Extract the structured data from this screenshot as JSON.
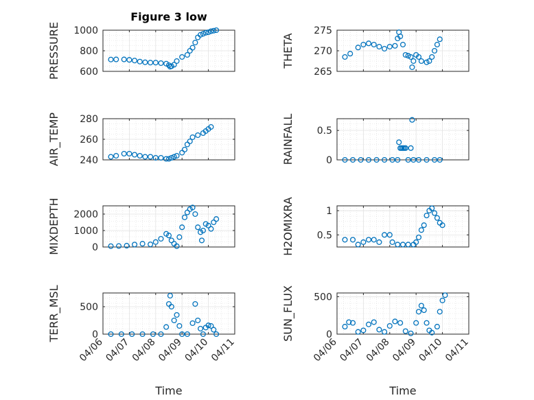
{
  "title": "Figure 3 low",
  "xlabel": "Time",
  "x_ticks": [
    "04/06",
    "04/07",
    "04/08",
    "04/09",
    "04/10",
    "04/11"
  ],
  "marker_color": "#0072BD",
  "chart_data": [
    {
      "type": "scatter",
      "ylabel": "PRESSURE",
      "ylim": [
        600,
        1000
      ],
      "yticks": [
        "600",
        "800",
        "1000"
      ],
      "points": [
        [
          0.3,
          715
        ],
        [
          0.5,
          716
        ],
        [
          0.8,
          716
        ],
        [
          1.0,
          712
        ],
        [
          1.2,
          705
        ],
        [
          1.4,
          695
        ],
        [
          1.6,
          688
        ],
        [
          1.8,
          685
        ],
        [
          2.0,
          685
        ],
        [
          2.2,
          680
        ],
        [
          2.4,
          675
        ],
        [
          2.5,
          660
        ],
        [
          2.55,
          645
        ],
        [
          2.6,
          650
        ],
        [
          2.7,
          665
        ],
        [
          2.8,
          700
        ],
        [
          3.0,
          740
        ],
        [
          3.2,
          760
        ],
        [
          3.3,
          800
        ],
        [
          3.4,
          830
        ],
        [
          3.5,
          880
        ],
        [
          3.6,
          930
        ],
        [
          3.7,
          955
        ],
        [
          3.8,
          965
        ],
        [
          3.9,
          975
        ],
        [
          4.0,
          980
        ],
        [
          4.1,
          990
        ],
        [
          4.2,
          995
        ],
        [
          4.3,
          1000
        ]
      ]
    },
    {
      "type": "scatter",
      "ylabel": "THETA",
      "ylim": [
        265,
        275
      ],
      "yticks": [
        "265",
        "270",
        "275"
      ],
      "points": [
        [
          0.3,
          268.5
        ],
        [
          0.5,
          269.3
        ],
        [
          0.8,
          270.8
        ],
        [
          1.0,
          271.5
        ],
        [
          1.2,
          271.8
        ],
        [
          1.4,
          271.5
        ],
        [
          1.6,
          271.0
        ],
        [
          1.8,
          270.5
        ],
        [
          2.0,
          271.0
        ],
        [
          2.2,
          271.2
        ],
        [
          2.3,
          273.0
        ],
        [
          2.35,
          274.5
        ],
        [
          2.4,
          273.5
        ],
        [
          2.5,
          271.5
        ],
        [
          2.6,
          269.0
        ],
        [
          2.7,
          268.8
        ],
        [
          2.8,
          268.5
        ],
        [
          2.85,
          266.0
        ],
        [
          2.9,
          267.5
        ],
        [
          3.0,
          269.0
        ],
        [
          3.1,
          268.5
        ],
        [
          3.2,
          267.5
        ],
        [
          3.4,
          267.2
        ],
        [
          3.5,
          267.5
        ],
        [
          3.6,
          268.5
        ],
        [
          3.7,
          270.0
        ],
        [
          3.8,
          271.5
        ],
        [
          3.9,
          272.8
        ]
      ]
    },
    {
      "type": "scatter",
      "ylabel": "AIR_TEMP",
      "ylim": [
        240,
        280
      ],
      "yticks": [
        "240",
        "260",
        "280"
      ],
      "points": [
        [
          0.3,
          243
        ],
        [
          0.5,
          244
        ],
        [
          0.8,
          246
        ],
        [
          1.0,
          246
        ],
        [
          1.2,
          245
        ],
        [
          1.4,
          244
        ],
        [
          1.6,
          243
        ],
        [
          1.8,
          243
        ],
        [
          2.0,
          242
        ],
        [
          2.2,
          242
        ],
        [
          2.4,
          241
        ],
        [
          2.5,
          241
        ],
        [
          2.6,
          242
        ],
        [
          2.7,
          243
        ],
        [
          2.8,
          244
        ],
        [
          3.0,
          247
        ],
        [
          3.1,
          250
        ],
        [
          3.2,
          255
        ],
        [
          3.3,
          258
        ],
        [
          3.4,
          262
        ],
        [
          3.6,
          264
        ],
        [
          3.8,
          266
        ],
        [
          3.9,
          268
        ],
        [
          4.0,
          270
        ],
        [
          4.1,
          272
        ]
      ]
    },
    {
      "type": "scatter",
      "ylabel": "RAINFALL",
      "ylim": [
        0,
        0.7
      ],
      "yticks": [
        "0",
        "0.5"
      ],
      "points": [
        [
          0.3,
          0
        ],
        [
          0.6,
          0
        ],
        [
          0.9,
          0
        ],
        [
          1.2,
          0
        ],
        [
          1.5,
          0
        ],
        [
          1.8,
          0
        ],
        [
          2.1,
          0
        ],
        [
          2.3,
          0
        ],
        [
          2.35,
          0.3
        ],
        [
          2.4,
          0.2
        ],
        [
          2.45,
          0.2
        ],
        [
          2.5,
          0.2
        ],
        [
          2.55,
          0.2
        ],
        [
          2.6,
          0.2
        ],
        [
          2.7,
          0
        ],
        [
          2.8,
          0.2
        ],
        [
          2.85,
          0.68
        ],
        [
          2.9,
          0
        ],
        [
          3.1,
          0
        ],
        [
          3.4,
          0
        ],
        [
          3.7,
          0
        ],
        [
          3.9,
          0
        ]
      ]
    },
    {
      "type": "scatter",
      "ylabel": "MIXDEPTH",
      "ylim": [
        0,
        2500
      ],
      "yticks": [
        "0",
        "1000",
        "2000"
      ],
      "points": [
        [
          0.3,
          50
        ],
        [
          0.6,
          60
        ],
        [
          0.9,
          80
        ],
        [
          1.2,
          150
        ],
        [
          1.5,
          200
        ],
        [
          1.8,
          160
        ],
        [
          2.0,
          300
        ],
        [
          2.2,
          500
        ],
        [
          2.4,
          800
        ],
        [
          2.5,
          700
        ],
        [
          2.6,
          400
        ],
        [
          2.7,
          200
        ],
        [
          2.8,
          50
        ],
        [
          2.9,
          600
        ],
        [
          3.0,
          1200
        ],
        [
          3.1,
          1800
        ],
        [
          3.2,
          2100
        ],
        [
          3.3,
          2300
        ],
        [
          3.4,
          2400
        ],
        [
          3.5,
          2000
        ],
        [
          3.6,
          1200
        ],
        [
          3.7,
          900
        ],
        [
          3.75,
          400
        ],
        [
          3.8,
          1000
        ],
        [
          3.9,
          1400
        ],
        [
          4.0,
          1300
        ],
        [
          4.1,
          1100
        ],
        [
          4.2,
          1500
        ],
        [
          4.3,
          1700
        ]
      ]
    },
    {
      "type": "scatter",
      "ylabel": "H2OMIXRA",
      "ylim": [
        0.25,
        1.1
      ],
      "yticks": [
        "0.5",
        "1"
      ],
      "points": [
        [
          0.3,
          0.4
        ],
        [
          0.6,
          0.4
        ],
        [
          0.8,
          0.3
        ],
        [
          1.0,
          0.35
        ],
        [
          1.2,
          0.4
        ],
        [
          1.4,
          0.4
        ],
        [
          1.6,
          0.35
        ],
        [
          1.8,
          0.5
        ],
        [
          2.0,
          0.5
        ],
        [
          2.1,
          0.35
        ],
        [
          2.3,
          0.3
        ],
        [
          2.5,
          0.3
        ],
        [
          2.7,
          0.3
        ],
        [
          2.9,
          0.3
        ],
        [
          3.0,
          0.35
        ],
        [
          3.1,
          0.45
        ],
        [
          3.2,
          0.6
        ],
        [
          3.3,
          0.7
        ],
        [
          3.4,
          0.9
        ],
        [
          3.5,
          1.0
        ],
        [
          3.6,
          1.05
        ],
        [
          3.7,
          0.95
        ],
        [
          3.8,
          0.85
        ],
        [
          3.9,
          0.75
        ],
        [
          4.0,
          0.7
        ]
      ]
    },
    {
      "type": "scatter",
      "ylabel": "TERR_MSL",
      "ylim": [
        0,
        750
      ],
      "yticks": [
        "0",
        "500"
      ],
      "points": [
        [
          0.3,
          0
        ],
        [
          0.7,
          0
        ],
        [
          1.1,
          0
        ],
        [
          1.5,
          0
        ],
        [
          1.9,
          0
        ],
        [
          2.2,
          0
        ],
        [
          2.4,
          130
        ],
        [
          2.5,
          550
        ],
        [
          2.55,
          700
        ],
        [
          2.6,
          500
        ],
        [
          2.7,
          250
        ],
        [
          2.8,
          350
        ],
        [
          2.9,
          150
        ],
        [
          3.0,
          0
        ],
        [
          3.2,
          0
        ],
        [
          3.4,
          200
        ],
        [
          3.5,
          550
        ],
        [
          3.6,
          250
        ],
        [
          3.7,
          100
        ],
        [
          3.8,
          0
        ],
        [
          3.9,
          120
        ],
        [
          4.0,
          160
        ],
        [
          4.1,
          150
        ],
        [
          4.2,
          80
        ],
        [
          4.3,
          0
        ]
      ]
    },
    {
      "type": "scatter",
      "ylabel": "SUN_FLUX",
      "ylim": [
        0,
        550
      ],
      "yticks": [
        "0",
        "500"
      ],
      "points": [
        [
          0.3,
          100
        ],
        [
          0.45,
          160
        ],
        [
          0.6,
          150
        ],
        [
          0.8,
          30
        ],
        [
          1.0,
          50
        ],
        [
          1.2,
          130
        ],
        [
          1.4,
          160
        ],
        [
          1.6,
          60
        ],
        [
          1.8,
          30
        ],
        [
          2.0,
          110
        ],
        [
          2.2,
          170
        ],
        [
          2.4,
          150
        ],
        [
          2.6,
          40
        ],
        [
          2.8,
          10
        ],
        [
          3.0,
          150
        ],
        [
          3.1,
          300
        ],
        [
          3.2,
          380
        ],
        [
          3.3,
          320
        ],
        [
          3.4,
          150
        ],
        [
          3.5,
          50
        ],
        [
          3.6,
          20
        ],
        [
          3.8,
          100
        ],
        [
          3.9,
          300
        ],
        [
          4.0,
          450
        ],
        [
          4.1,
          520
        ]
      ]
    }
  ]
}
